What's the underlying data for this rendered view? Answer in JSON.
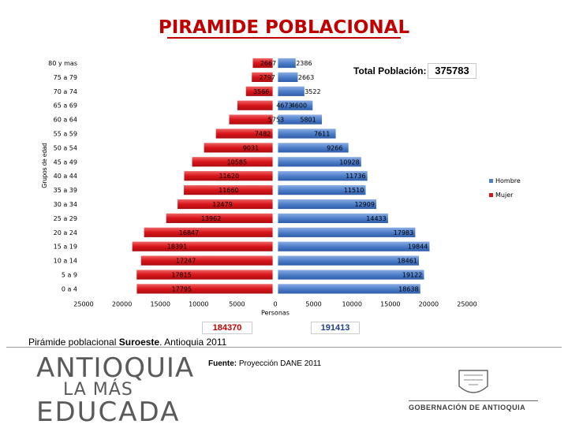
{
  "title": "PIRAMIDE POBLACIONAL",
  "total_poblacion": {
    "label": "Total Población:",
    "value": "375783"
  },
  "totals": {
    "hombre": "191413",
    "mujer": "184370"
  },
  "caption": {
    "prefix": "Pirámide poblacional ",
    "region": "Suroeste",
    "suffix": ". Antioquia 2011"
  },
  "source": {
    "label": "Fuente:",
    "text": " Proyección DANE 2011"
  },
  "footer": {
    "logo_line1": "ANTIOQUIA",
    "logo_line2": "LA MÁS",
    "logo_line3": "EDUCADA",
    "gov_text": "GOBERNACIÓN DE ANTIOQUIA"
  },
  "colors": {
    "hombre": "#4f7fc9",
    "mujer": "#d9151b",
    "title": "#c00000"
  },
  "chart_data": {
    "type": "bar",
    "orientation": "horizontal",
    "ylabel": "Grupos de edad",
    "xlabel": "Personas",
    "categories": [
      "80 y mas",
      "75 a 79",
      "70 a 74",
      "65 a 69",
      "60 a 64",
      "55 a 59",
      "50 a 54",
      "45 a 49",
      "40 a 44",
      "35 a 39",
      "30 a 34",
      "25 a 29",
      "20 a 24",
      "15 a 19",
      "10 a 14",
      "5 a 9",
      "0 a 4"
    ],
    "series": [
      {
        "name": "Hombre",
        "side": "right",
        "values": [
          2386,
          2663,
          3522,
          4600,
          5801,
          7611,
          9266,
          10928,
          11736,
          11510,
          12909,
          14433,
          17983,
          19844,
          18461,
          19122,
          18638
        ]
      },
      {
        "name": "Mujer",
        "side": "left",
        "values": [
          2667,
          2797,
          3566,
          4673,
          5753,
          7482,
          9031,
          10585,
          11620,
          11660,
          12479,
          13962,
          16847,
          18391,
          17247,
          17815,
          17795
        ]
      }
    ],
    "xlim": [
      -25000,
      25000
    ],
    "xticks": [
      -25000,
      -20000,
      -15000,
      -10000,
      -5000,
      0,
      5000,
      10000,
      15000,
      20000,
      25000
    ],
    "xtick_labels": [
      "25000",
      "20000",
      "15000",
      "10000",
      "5000",
      "0",
      "5000",
      "10000",
      "15000",
      "20000",
      "25000"
    ],
    "legend": {
      "position": "right",
      "entries": [
        "Hombre",
        "Mujer"
      ]
    }
  }
}
